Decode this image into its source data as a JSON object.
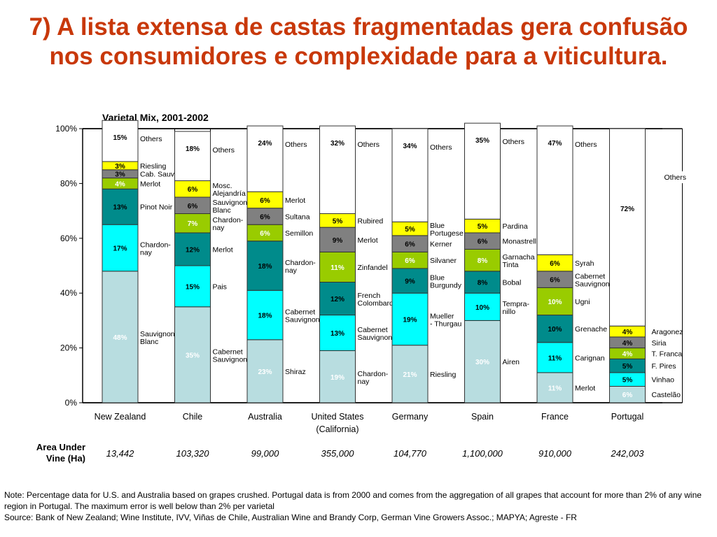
{
  "slide_title": "7) A lista extensa de castas fragmentadas gera confusão nos consumidores e complexidade para a viticultura.",
  "chart_data": {
    "type": "bar",
    "stacked": true,
    "title": "Varietal Mix, 2001-2002",
    "xlabel": "",
    "ylabel": "",
    "ylim": [
      0,
      100
    ],
    "yticks": [
      "0%",
      "20%",
      "40%",
      "60%",
      "80%",
      "100%"
    ],
    "grid": false,
    "colors": {
      "base": "#b8dde0",
      "cyan": "#00ffff",
      "teal": "#008b8b",
      "lime": "#99cc00",
      "gray": "#808080",
      "yellow": "#ffff00",
      "others": "#ffffff"
    },
    "categories": [
      {
        "name": "New Zealand",
        "segments": [
          {
            "variety": "Sauvignon Blanc",
            "value": 48,
            "color": "base"
          },
          {
            "variety": "Chardon-nay",
            "value": 17,
            "color": "cyan"
          },
          {
            "variety": "Pinot Noir",
            "value": 13,
            "color": "teal"
          },
          {
            "variety": "Merlot",
            "value": 4,
            "color": "lime"
          },
          {
            "variety": "Cab. Sauv.",
            "value": 3,
            "color": "gray"
          },
          {
            "variety": "Riesling",
            "value": 3,
            "color": "yellow"
          },
          {
            "variety": "Others",
            "value": 15,
            "color": "others"
          }
        ]
      },
      {
        "name": "Chile",
        "segments": [
          {
            "variety": "Cabernet Sauvignon",
            "value": 35,
            "color": "base"
          },
          {
            "variety": "Pais",
            "value": 15,
            "color": "cyan"
          },
          {
            "variety": "Merlot",
            "value": 12,
            "color": "teal"
          },
          {
            "variety": "Chardon-nay",
            "value": 7,
            "color": "lime"
          },
          {
            "variety": "Sauvignon Blanc",
            "value": 6,
            "color": "gray"
          },
          {
            "variety": "Mosc. Alejandría",
            "value": 6,
            "color": "yellow"
          },
          {
            "variety": "Others",
            "value": 18,
            "color": "others"
          }
        ]
      },
      {
        "name": "Australia",
        "segments": [
          {
            "variety": "Shiraz",
            "value": 23,
            "color": "base"
          },
          {
            "variety": "Cabernet Sauvignon",
            "value": 18,
            "color": "cyan"
          },
          {
            "variety": "Chardon-nay",
            "value": 18,
            "color": "teal"
          },
          {
            "variety": "Semillon",
            "value": 6,
            "color": "lime"
          },
          {
            "variety": "Sultana",
            "value": 6,
            "color": "gray"
          },
          {
            "variety": "Merlot",
            "value": 6,
            "color": "yellow"
          },
          {
            "variety": "Others",
            "value": 24,
            "color": "others"
          }
        ]
      },
      {
        "name": "United States (California)",
        "segments": [
          {
            "variety": "Chardon-nay",
            "value": 19,
            "color": "base"
          },
          {
            "variety": "Cabernet Sauvignon",
            "value": 13,
            "color": "cyan"
          },
          {
            "variety": "French Colombard",
            "value": 12,
            "color": "teal"
          },
          {
            "variety": "Zinfandel",
            "value": 11,
            "color": "lime"
          },
          {
            "variety": "Merlot",
            "value": 9,
            "color": "gray"
          },
          {
            "variety": "Rubired",
            "value": 5,
            "color": "yellow"
          },
          {
            "variety": "Others",
            "value": 32,
            "color": "others"
          }
        ]
      },
      {
        "name": "Germany",
        "segments": [
          {
            "variety": "Riesling",
            "value": 21,
            "color": "base"
          },
          {
            "variety": "Mueller - Thurgau",
            "value": 19,
            "color": "cyan"
          },
          {
            "variety": "Blue Burgundy",
            "value": 9,
            "color": "teal"
          },
          {
            "variety": "Silvaner",
            "value": 6,
            "color": "lime"
          },
          {
            "variety": "Kerner",
            "value": 6,
            "color": "gray"
          },
          {
            "variety": "Blue Portugese",
            "value": 5,
            "color": "yellow"
          },
          {
            "variety": "Others",
            "value": 34,
            "color": "others"
          }
        ]
      },
      {
        "name": "Spain",
        "segments": [
          {
            "variety": "Airen",
            "value": 30,
            "color": "base"
          },
          {
            "variety": "Tempra-nillo",
            "value": 10,
            "color": "cyan"
          },
          {
            "variety": "Bobal",
            "value": 8,
            "color": "teal"
          },
          {
            "variety": "Garnacha Tinta",
            "value": 8,
            "color": "lime"
          },
          {
            "variety": "Monastrell",
            "value": 6,
            "color": "gray"
          },
          {
            "variety": "Pardina",
            "value": 5,
            "color": "yellow"
          },
          {
            "variety": "Others",
            "value": 35,
            "color": "others"
          }
        ]
      },
      {
        "name": "France",
        "segments": [
          {
            "variety": "Merlot",
            "value": 11,
            "color": "base"
          },
          {
            "variety": "Carignan",
            "value": 11,
            "color": "cyan"
          },
          {
            "variety": "Grenache",
            "value": 10,
            "color": "teal"
          },
          {
            "variety": "Ugni",
            "value": 10,
            "color": "lime"
          },
          {
            "variety": "Cabernet Sauvignon",
            "value": 6,
            "color": "gray"
          },
          {
            "variety": "Syrah",
            "value": 6,
            "color": "yellow"
          },
          {
            "variety": "Others",
            "value": 47,
            "color": "others"
          }
        ]
      },
      {
        "name": "Portugal",
        "segments": [
          {
            "variety": "Castelão",
            "value": 6,
            "color": "base"
          },
          {
            "variety": "Vinhao",
            "value": 5,
            "color": "cyan"
          },
          {
            "variety": "F. Pires",
            "value": 5,
            "color": "teal"
          },
          {
            "variety": "T. Franca",
            "value": 4,
            "color": "lime"
          },
          {
            "variety": "Siria",
            "value": 4,
            "color": "gray"
          },
          {
            "variety": "Aragonez",
            "value": 4,
            "color": "yellow"
          },
          {
            "variety": "Others",
            "value": 72,
            "color": "others"
          }
        ]
      }
    ]
  },
  "area_under_vine": {
    "label": "Area Under Vine (Ha)",
    "values": [
      "13,442",
      "103,320",
      "99,000",
      "355,000",
      "104,770",
      "1,100,000",
      "910,000",
      "242,003"
    ]
  },
  "note": "Note:  Percentage data for U.S. and Australia based on grapes crushed. Portugal data is from 2000 and comes from the aggregation of all grapes that account for more than 2% of any wine region in Portugal. The maximum error is well below than 2% per varietal",
  "source": "Source: Bank of New Zealand; Wine Institute, IVV, Viñas de Chile, Australian Wine and Brandy Corp, German Vine Growers Assoc.; MAPYA; Agreste - FR"
}
